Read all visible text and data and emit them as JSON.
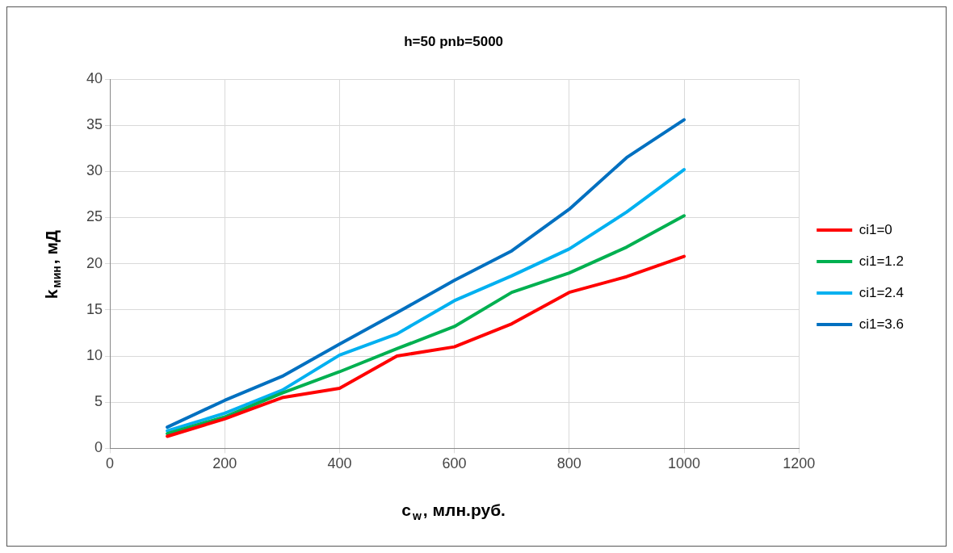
{
  "chart_data": {
    "type": "line",
    "title": "h=50 pnb=5000",
    "xlabel": "c$_{w}$, млн.руб.",
    "ylabel": "k$_{мин}$, мД",
    "x": [
      100,
      200,
      300,
      400,
      500,
      600,
      700,
      800,
      900,
      1000
    ],
    "series": [
      {
        "name": "ci1=0",
        "color": "#ff0000",
        "values": [
          1.3,
          3.2,
          5.5,
          6.5,
          10,
          11,
          13.5,
          16.9,
          18.6,
          20.8
        ]
      },
      {
        "name": "ci1=1.2",
        "color": "#00b050",
        "values": [
          1.6,
          3.4,
          6.0,
          8.3,
          10.8,
          13.2,
          16.9,
          19.0,
          21.8,
          25.2
        ]
      },
      {
        "name": "ci1=2.4",
        "color": "#00b0f0",
        "values": [
          1.9,
          3.8,
          6.3,
          10.1,
          12.4,
          16.0,
          18.7,
          21.6,
          25.6,
          30.2
        ]
      },
      {
        "name": "ci1=3.6",
        "color": "#0070c0",
        "values": [
          2.3,
          5.2,
          7.8,
          11.3,
          14.7,
          18.2,
          21.4,
          25.9,
          31.5,
          35.6
        ]
      }
    ],
    "xlim": [
      0,
      1200
    ],
    "xticks": [
      0,
      200,
      400,
      600,
      800,
      1000,
      1200
    ],
    "ylim": [
      0,
      40
    ],
    "yticks": [
      0,
      5,
      10,
      15,
      20,
      25,
      30,
      35,
      40
    ],
    "grid": true,
    "legend": "right",
    "marker": "none",
    "line_style": "solid"
  }
}
